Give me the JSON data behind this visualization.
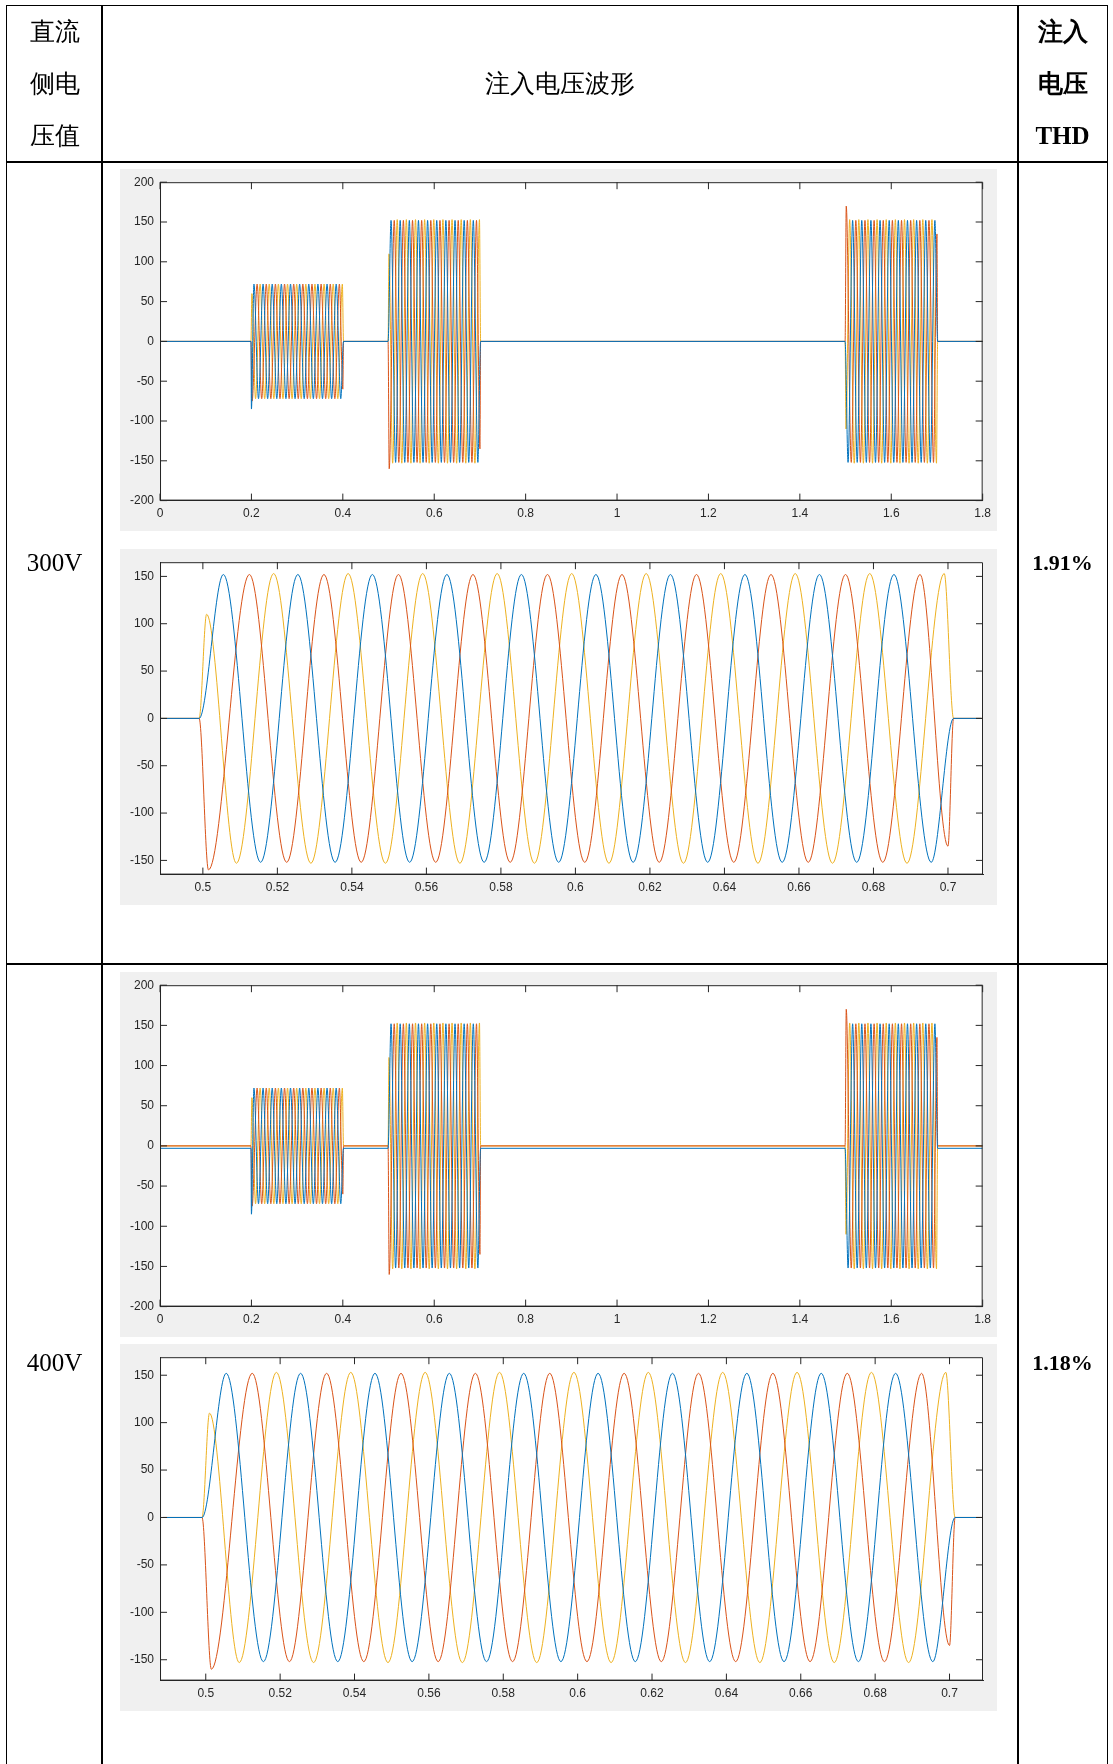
{
  "chart_data": [
    {
      "type": "line",
      "annotations": [
        "直流侧电压值",
        "注入电压波形",
        "注入电压THD",
        "300V",
        "1.91%"
      ],
      "xlim": [
        0,
        1.8
      ],
      "xticks": [
        0,
        0.2,
        0.4,
        0.6,
        0.8,
        1,
        1.2,
        1.4,
        1.6,
        1.8
      ],
      "ylim": [
        -200,
        200
      ],
      "yticks": [
        -200,
        -150,
        -100,
        -50,
        0,
        50,
        100,
        150,
        200
      ],
      "series": [
        {
          "color": "#0072bd",
          "x": [
            0,
            0.199,
            0.2,
            0.2055,
            0.2155,
            0.2255,
            0.2355,
            0.2455,
            0.2555,
            0.2655,
            0.2755,
            0.2855,
            0.2955,
            0.3055,
            0.3155,
            0.3255,
            0.3355,
            0.3455,
            0.3555,
            0.3655,
            0.3755,
            0.3855,
            0.3955,
            0.4015,
            0.499,
            0.5055,
            0.5155,
            0.5255,
            0.5355,
            0.5455,
            0.5555,
            0.5655,
            0.5755,
            0.5855,
            0.5955,
            0.6055,
            0.6155,
            0.6255,
            0.6355,
            0.6455,
            0.6555,
            0.6655,
            0.6755,
            0.6855,
            0.6955,
            0.7015,
            1.499,
            1.5055,
            1.5155,
            1.5255,
            1.5355,
            1.5455,
            1.5555,
            1.5655,
            1.5755,
            1.5855,
            1.5955,
            1.6055,
            1.6155,
            1.6255,
            1.6355,
            1.6455,
            1.6555,
            1.6655,
            1.6755,
            1.6855,
            1.6955,
            1.7015,
            1.8
          ],
          "values": [
            0,
            0,
            -85,
            72,
            -72,
            72,
            -72,
            72,
            -72,
            72,
            -72,
            72,
            -72,
            72,
            -72,
            72,
            -72,
            72,
            -72,
            72,
            -72,
            72,
            -72,
            0,
            0,
            152,
            -152,
            152,
            -152,
            152,
            -152,
            152,
            -152,
            152,
            -152,
            152,
            -152,
            152,
            -152,
            152,
            -152,
            152,
            -152,
            152,
            -152,
            0,
            0,
            -152,
            152,
            -152,
            152,
            -152,
            152,
            -152,
            152,
            -152,
            152,
            -152,
            152,
            -152,
            152,
            -152,
            152,
            -152,
            152,
            -152,
            152,
            0,
            0
          ]
        },
        {
          "color": "#d95319",
          "x": [
            0,
            0.199,
            0.2015,
            0.2125,
            0.2225,
            0.2325,
            0.2425,
            0.2525,
            0.2625,
            0.2725,
            0.2825,
            0.2925,
            0.3025,
            0.3125,
            0.3225,
            0.3325,
            0.3425,
            0.3525,
            0.3625,
            0.3725,
            0.3825,
            0.3925,
            0.4,
            0.4015,
            0.499,
            0.5015,
            0.5125,
            0.5225,
            0.5325,
            0.5425,
            0.5525,
            0.5625,
            0.5725,
            0.5825,
            0.5925,
            0.6025,
            0.6125,
            0.6225,
            0.6325,
            0.6425,
            0.6525,
            0.6625,
            0.6725,
            0.6825,
            0.6925,
            0.7,
            0.7015,
            1.499,
            1.5015,
            1.5125,
            1.5225,
            1.5325,
            1.5425,
            1.5525,
            1.5625,
            1.5725,
            1.5825,
            1.5925,
            1.6025,
            1.6125,
            1.6225,
            1.6325,
            1.6425,
            1.6525,
            1.6625,
            1.6725,
            1.6825,
            1.6925,
            1.7,
            1.7015,
            1.8
          ],
          "values": [
            0,
            0,
            -75,
            72,
            -72,
            72,
            -72,
            72,
            -72,
            72,
            -72,
            72,
            -72,
            72,
            -72,
            72,
            -72,
            72,
            -72,
            72,
            -72,
            72,
            -60,
            0,
            0,
            -160,
            152,
            -152,
            152,
            -152,
            152,
            -152,
            152,
            -152,
            152,
            -152,
            152,
            -152,
            152,
            -152,
            152,
            -152,
            152,
            -152,
            152,
            -135,
            0,
            0,
            170,
            -152,
            152,
            -152,
            152,
            -152,
            152,
            -152,
            152,
            -152,
            152,
            -152,
            152,
            -152,
            152,
            -152,
            152,
            -152,
            152,
            -152,
            135,
            0,
            0
          ]
        },
        {
          "color": "#edb120",
          "x": [
            0,
            0.199,
            0.201,
            0.209,
            0.219,
            0.229,
            0.239,
            0.249,
            0.259,
            0.269,
            0.279,
            0.289,
            0.299,
            0.309,
            0.319,
            0.329,
            0.339,
            0.349,
            0.359,
            0.369,
            0.379,
            0.389,
            0.399,
            0.4015,
            0.499,
            0.501,
            0.509,
            0.519,
            0.529,
            0.539,
            0.549,
            0.559,
            0.569,
            0.579,
            0.589,
            0.599,
            0.609,
            0.619,
            0.629,
            0.639,
            0.649,
            0.659,
            0.669,
            0.679,
            0.689,
            0.699,
            0.7015,
            1.499,
            1.501,
            1.509,
            1.519,
            1.529,
            1.539,
            1.549,
            1.559,
            1.569,
            1.579,
            1.589,
            1.599,
            1.609,
            1.619,
            1.629,
            1.639,
            1.649,
            1.659,
            1.669,
            1.679,
            1.689,
            1.699,
            1.7015,
            1.8
          ],
          "values": [
            0,
            0,
            60,
            -72,
            72,
            -72,
            72,
            -72,
            72,
            -72,
            72,
            -72,
            72,
            -72,
            72,
            -72,
            72,
            -72,
            72,
            -72,
            72,
            -72,
            72,
            0,
            0,
            110,
            -153,
            153,
            -153,
            153,
            -153,
            153,
            -153,
            153,
            -153,
            153,
            -153,
            153,
            -153,
            153,
            -153,
            153,
            -153,
            153,
            -153,
            153,
            0,
            0,
            -110,
            153,
            -153,
            153,
            -153,
            153,
            -153,
            153,
            -153,
            153,
            -153,
            153,
            -153,
            153,
            -153,
            153,
            -153,
            153,
            -153,
            153,
            -153,
            0,
            0
          ]
        }
      ]
    },
    {
      "type": "line",
      "xlim": [
        0.4885,
        0.7094
      ],
      "xticks": [
        0.5,
        0.52,
        0.54,
        0.56,
        0.58,
        0.6,
        0.62,
        0.64,
        0.66,
        0.68,
        0.7
      ],
      "ylim": [
        -165,
        165
      ],
      "yticks": [
        -150,
        -100,
        -50,
        0,
        50,
        100,
        150
      ],
      "series": [
        {
          "color": "#0072bd",
          "x": [
            0.4885,
            0.499,
            0.5055,
            0.5155,
            0.5255,
            0.5355,
            0.5455,
            0.5555,
            0.5655,
            0.5755,
            0.5855,
            0.5955,
            0.6055,
            0.6155,
            0.6255,
            0.6355,
            0.6455,
            0.6555,
            0.6655,
            0.6755,
            0.6855,
            0.6955,
            0.7015,
            0.709
          ],
          "values": [
            0,
            0,
            152,
            -152,
            152,
            -152,
            152,
            -152,
            152,
            -152,
            152,
            -152,
            152,
            -152,
            152,
            -152,
            152,
            -152,
            152,
            -152,
            152,
            -152,
            0,
            0
          ]
        },
        {
          "color": "#d95319",
          "x": [
            0.4885,
            0.499,
            0.5015,
            0.5125,
            0.5225,
            0.5325,
            0.5425,
            0.5525,
            0.5625,
            0.5725,
            0.5825,
            0.5925,
            0.6025,
            0.6125,
            0.6225,
            0.6325,
            0.6425,
            0.6525,
            0.6625,
            0.6725,
            0.6825,
            0.6925,
            0.7,
            0.7015,
            0.709
          ],
          "values": [
            0,
            0,
            -160,
            152,
            -152,
            152,
            -152,
            152,
            -152,
            152,
            -152,
            152,
            -152,
            152,
            -152,
            152,
            -152,
            152,
            -152,
            152,
            -152,
            152,
            -135,
            0,
            0
          ]
        },
        {
          "color": "#edb120",
          "x": [
            0.4885,
            0.499,
            0.501,
            0.509,
            0.519,
            0.529,
            0.539,
            0.549,
            0.559,
            0.569,
            0.579,
            0.589,
            0.599,
            0.609,
            0.619,
            0.629,
            0.639,
            0.649,
            0.659,
            0.669,
            0.679,
            0.689,
            0.699,
            0.7015,
            0.709
          ],
          "values": [
            0,
            0,
            110,
            -153,
            153,
            -153,
            153,
            -153,
            153,
            -153,
            153,
            -153,
            153,
            -153,
            153,
            -153,
            153,
            -153,
            153,
            -153,
            153,
            -153,
            153,
            0,
            0
          ]
        }
      ]
    },
    {
      "type": "line",
      "annotations": [
        "400V",
        "1.18%"
      ],
      "xlim": [
        0,
        1.8
      ],
      "xticks": [
        0,
        0.2,
        0.4,
        0.6,
        0.8,
        1,
        1.2,
        1.4,
        1.6,
        1.8
      ],
      "ylim": [
        -200,
        200
      ],
      "yticks": [
        -200,
        -150,
        -100,
        -50,
        0,
        50,
        100,
        150,
        200
      ],
      "series": [
        {
          "color": "#0072bd",
          "x": [
            0,
            0.199,
            0.2,
            0.2055,
            0.2155,
            0.2255,
            0.2355,
            0.2455,
            0.2555,
            0.2655,
            0.2755,
            0.2855,
            0.2955,
            0.3055,
            0.3155,
            0.3255,
            0.3355,
            0.3455,
            0.3555,
            0.3655,
            0.3755,
            0.3855,
            0.3955,
            0.4015,
            0.499,
            0.5055,
            0.5155,
            0.5255,
            0.5355,
            0.5455,
            0.5555,
            0.5655,
            0.5755,
            0.5855,
            0.5955,
            0.6055,
            0.6155,
            0.6255,
            0.6355,
            0.6455,
            0.6555,
            0.6655,
            0.6755,
            0.6855,
            0.6955,
            0.7015,
            1.499,
            1.5055,
            1.5155,
            1.5255,
            1.5355,
            1.5455,
            1.5555,
            1.5655,
            1.5755,
            1.5855,
            1.5955,
            1.6055,
            1.6155,
            1.6255,
            1.6355,
            1.6455,
            1.6555,
            1.6655,
            1.6755,
            1.6855,
            1.6955,
            1.7015,
            1.8
          ],
          "values": [
            -3,
            -3,
            -85,
            72,
            -72,
            72,
            -72,
            72,
            -72,
            72,
            -72,
            72,
            -72,
            72,
            -72,
            72,
            -72,
            72,
            -72,
            72,
            -72,
            72,
            -72,
            -3,
            -3,
            152,
            -152,
            152,
            -152,
            152,
            -152,
            152,
            -152,
            152,
            -152,
            152,
            -152,
            152,
            -152,
            152,
            -152,
            152,
            -152,
            152,
            -152,
            -3,
            -3,
            -152,
            152,
            -152,
            152,
            -152,
            152,
            -152,
            152,
            -152,
            152,
            -152,
            152,
            -152,
            152,
            -152,
            152,
            -152,
            152,
            -152,
            152,
            -3,
            -3
          ]
        },
        {
          "color": "#d95319",
          "x": [
            0,
            0.199,
            0.2015,
            0.2125,
            0.2225,
            0.2325,
            0.2425,
            0.2525,
            0.2625,
            0.2725,
            0.2825,
            0.2925,
            0.3025,
            0.3125,
            0.3225,
            0.3325,
            0.3425,
            0.3525,
            0.3625,
            0.3725,
            0.3825,
            0.3925,
            0.4,
            0.4015,
            0.499,
            0.5015,
            0.5125,
            0.5225,
            0.5325,
            0.5425,
            0.5525,
            0.5625,
            0.5725,
            0.5825,
            0.5925,
            0.6025,
            0.6125,
            0.6225,
            0.6325,
            0.6425,
            0.6525,
            0.6625,
            0.6725,
            0.6825,
            0.6925,
            0.7,
            0.7015,
            1.499,
            1.5015,
            1.5125,
            1.5225,
            1.5325,
            1.5425,
            1.5525,
            1.5625,
            1.5725,
            1.5825,
            1.5925,
            1.6025,
            1.6125,
            1.6225,
            1.6325,
            1.6425,
            1.6525,
            1.6625,
            1.6725,
            1.6825,
            1.6925,
            1.7,
            1.7015,
            1.8
          ],
          "values": [
            0,
            0,
            -75,
            72,
            -72,
            72,
            -72,
            72,
            -72,
            72,
            -72,
            72,
            -72,
            72,
            -72,
            72,
            -72,
            72,
            -72,
            72,
            -72,
            72,
            -60,
            0,
            0,
            -160,
            152,
            -152,
            152,
            -152,
            152,
            -152,
            152,
            -152,
            152,
            -152,
            152,
            -152,
            152,
            -152,
            152,
            -152,
            152,
            -152,
            152,
            -135,
            0,
            0,
            170,
            -152,
            152,
            -152,
            152,
            -152,
            152,
            -152,
            152,
            -152,
            152,
            -152,
            152,
            -152,
            152,
            -152,
            152,
            -152,
            152,
            -152,
            135,
            0,
            0
          ]
        },
        {
          "color": "#edb120",
          "x": [
            0,
            0.199,
            0.201,
            0.209,
            0.219,
            0.229,
            0.239,
            0.249,
            0.259,
            0.269,
            0.279,
            0.289,
            0.299,
            0.309,
            0.319,
            0.329,
            0.339,
            0.349,
            0.359,
            0.369,
            0.379,
            0.389,
            0.399,
            0.4015,
            0.499,
            0.501,
            0.509,
            0.519,
            0.529,
            0.539,
            0.549,
            0.559,
            0.569,
            0.579,
            0.589,
            0.599,
            0.609,
            0.619,
            0.629,
            0.639,
            0.649,
            0.659,
            0.669,
            0.679,
            0.689,
            0.699,
            0.7015,
            1.499,
            1.501,
            1.509,
            1.519,
            1.529,
            1.539,
            1.549,
            1.559,
            1.569,
            1.579,
            1.589,
            1.599,
            1.609,
            1.619,
            1.629,
            1.639,
            1.649,
            1.659,
            1.669,
            1.679,
            1.689,
            1.699,
            1.7015,
            1.8
          ],
          "values": [
            0,
            0,
            60,
            -72,
            72,
            -72,
            72,
            -72,
            72,
            -72,
            72,
            -72,
            72,
            -72,
            72,
            -72,
            72,
            -72,
            72,
            -72,
            72,
            -72,
            72,
            0,
            0,
            110,
            -153,
            153,
            -153,
            153,
            -153,
            153,
            -153,
            153,
            -153,
            153,
            -153,
            153,
            -153,
            153,
            -153,
            153,
            -153,
            153,
            -153,
            153,
            0,
            0,
            -110,
            153,
            -153,
            153,
            -153,
            153,
            -153,
            153,
            -153,
            153,
            -153,
            153,
            -153,
            153,
            -153,
            153,
            -153,
            153,
            -153,
            153,
            -153,
            0,
            0
          ]
        }
      ]
    },
    {
      "type": "line",
      "xlim": [
        0.4877,
        0.709
      ],
      "xticks": [
        0.5,
        0.52,
        0.54,
        0.56,
        0.58,
        0.6,
        0.62,
        0.64,
        0.66,
        0.68,
        0.7
      ],
      "ylim": [
        -172,
        169
      ],
      "yticks": [
        -150,
        -100,
        -50,
        0,
        50,
        100,
        150
      ],
      "series": [
        {
          "color": "#0072bd",
          "x": [
            0.4885,
            0.499,
            0.5055,
            0.5155,
            0.5255,
            0.5355,
            0.5455,
            0.5555,
            0.5655,
            0.5755,
            0.5855,
            0.5955,
            0.6055,
            0.6155,
            0.6255,
            0.6355,
            0.6455,
            0.6555,
            0.6655,
            0.6755,
            0.6855,
            0.6955,
            0.7015,
            0.709
          ],
          "values": [
            0,
            0,
            152,
            -152,
            152,
            -152,
            152,
            -152,
            152,
            -152,
            152,
            -152,
            152,
            -152,
            152,
            -152,
            152,
            -152,
            152,
            -152,
            152,
            -152,
            0,
            0
          ]
        },
        {
          "color": "#d95319",
          "x": [
            0.4885,
            0.499,
            0.5015,
            0.5125,
            0.5225,
            0.5325,
            0.5425,
            0.5525,
            0.5625,
            0.5725,
            0.5825,
            0.5925,
            0.6025,
            0.6125,
            0.6225,
            0.6325,
            0.6425,
            0.6525,
            0.6625,
            0.6725,
            0.6825,
            0.6925,
            0.7,
            0.7015,
            0.709
          ],
          "values": [
            0,
            0,
            -160,
            152,
            -152,
            152,
            -152,
            152,
            -152,
            152,
            -152,
            152,
            -152,
            152,
            -152,
            152,
            -152,
            152,
            -152,
            152,
            -152,
            152,
            -135,
            0,
            0
          ]
        },
        {
          "color": "#edb120",
          "x": [
            0.4885,
            0.499,
            0.501,
            0.509,
            0.519,
            0.529,
            0.539,
            0.549,
            0.559,
            0.569,
            0.579,
            0.589,
            0.599,
            0.609,
            0.619,
            0.629,
            0.639,
            0.649,
            0.659,
            0.669,
            0.679,
            0.689,
            0.699,
            0.7015,
            0.709
          ],
          "values": [
            0,
            0,
            110,
            -153,
            153,
            -153,
            153,
            -153,
            153,
            -153,
            153,
            -153,
            153,
            -153,
            153,
            -153,
            153,
            -153,
            153,
            -153,
            153,
            -153,
            153,
            0,
            0
          ]
        }
      ]
    }
  ]
}
